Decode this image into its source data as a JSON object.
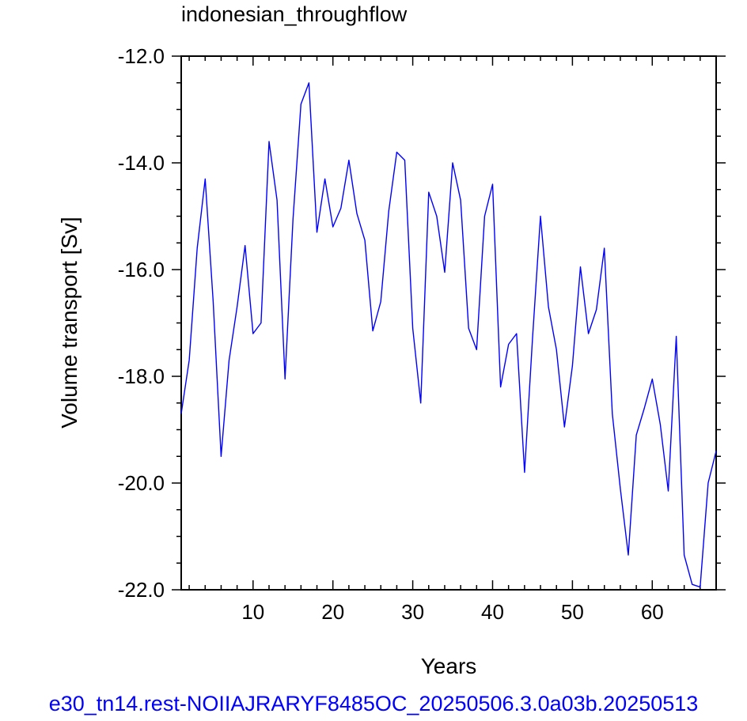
{
  "chart_data": {
    "type": "line",
    "title": "indonesian_throughflow",
    "xlabel": "Years",
    "ylabel": "Volume transport [Sv]",
    "xlim": [
      1,
      68
    ],
    "ylim": [
      -22.0,
      -12.0
    ],
    "xticks": [
      10,
      20,
      30,
      40,
      50,
      60
    ],
    "xtick_labels": [
      "10",
      "20",
      "30",
      "40",
      "50",
      "60"
    ],
    "yticks": [
      -12.0,
      -14.0,
      -16.0,
      -18.0,
      -20.0,
      -22.0
    ],
    "ytick_labels": [
      "-12.0",
      "-14.0",
      "-16.0",
      "-18.0",
      "-20.0",
      "-22.0"
    ],
    "line_color": "#0000ff",
    "grid": false,
    "series": [
      {
        "x": [
          1,
          2,
          3,
          4,
          5,
          6,
          7,
          8,
          9,
          10,
          11,
          12,
          13,
          14,
          15,
          16,
          17,
          18,
          19,
          20,
          21,
          22,
          23,
          24,
          25,
          26,
          27,
          28,
          29,
          30,
          31,
          32,
          33,
          34,
          35,
          36,
          37,
          38,
          39,
          40,
          41,
          42,
          43,
          44,
          45,
          46,
          47,
          48,
          49,
          50,
          51,
          52,
          53,
          54,
          55,
          56,
          57,
          58,
          59,
          60,
          61,
          62,
          63,
          64,
          65,
          66,
          67,
          68
        ],
        "values": [
          -18.7,
          -17.7,
          -15.6,
          -14.3,
          -16.6,
          -19.5,
          -17.7,
          -16.7,
          -15.55,
          -17.2,
          -17.0,
          -13.6,
          -14.7,
          -18.05,
          -15.05,
          -12.9,
          -12.5,
          -15.3,
          -14.3,
          -15.2,
          -14.85,
          -13.95,
          -14.95,
          -15.45,
          -17.15,
          -16.6,
          -14.9,
          -13.8,
          -13.95,
          -17.1,
          -18.5,
          -14.55,
          -15.0,
          -16.05,
          -14.0,
          -14.7,
          -17.1,
          -17.5,
          -15.0,
          -14.4,
          -18.2,
          -17.4,
          -17.2,
          -19.8,
          -17.3,
          -15.0,
          -16.7,
          -17.5,
          -18.95,
          -17.8,
          -15.95,
          -17.2,
          -16.75,
          -15.6,
          -18.7,
          -20.1,
          -21.35,
          -19.1,
          -18.6,
          -18.05,
          -18.9,
          -20.15,
          -17.25,
          -21.35,
          -21.9,
          -21.95,
          -20.0,
          -19.4
        ]
      }
    ]
  },
  "footer": {
    "case_name": "e30_tn14.rest-NOIIAJRARYF8485OC_20250506.3.0a03b.20250513"
  }
}
